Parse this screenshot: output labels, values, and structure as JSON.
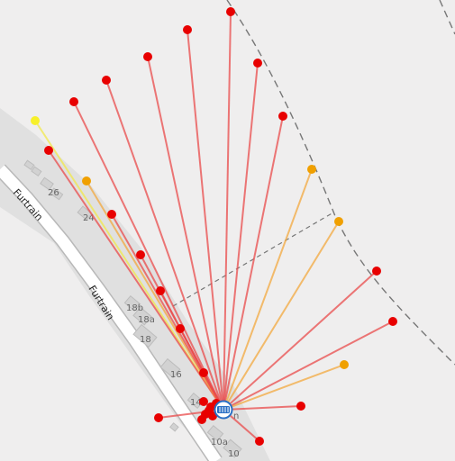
{
  "map": {
    "street_name": "Furtrain",
    "house_numbers": [
      "26",
      "24",
      "18b",
      "18a",
      "18",
      "16",
      "14",
      "10a",
      "10"
    ],
    "station_label": "n",
    "colors": {
      "background": "#efeeee",
      "land": "#e0e0e0",
      "road": "#ffffff",
      "road_casing": "#b8b8b8",
      "building": "#d2d2d2",
      "boundary": "#777777",
      "link_red": "#ea4b4b",
      "link_orange": "#f3a83d",
      "link_yellow": "#f2e84b",
      "point_red": "#e80000",
      "point_orange": "#f0a000",
      "point_yellow": "#f7f02a",
      "station": "#2a6fc4"
    },
    "points": [
      {
        "id": "p1",
        "status": "red"
      },
      {
        "id": "p2",
        "status": "red"
      },
      {
        "id": "p3",
        "status": "red"
      },
      {
        "id": "p4",
        "status": "red"
      },
      {
        "id": "p5",
        "status": "red"
      },
      {
        "id": "p6",
        "status": "red"
      },
      {
        "id": "p7",
        "status": "red"
      },
      {
        "id": "p8",
        "status": "orange"
      },
      {
        "id": "p9",
        "status": "orange"
      },
      {
        "id": "p10",
        "status": "red"
      },
      {
        "id": "p11",
        "status": "red"
      },
      {
        "id": "p12",
        "status": "orange"
      },
      {
        "id": "p13",
        "status": "red"
      },
      {
        "id": "p14",
        "status": "red"
      },
      {
        "id": "p15",
        "status": "red"
      },
      {
        "id": "p16",
        "status": "yellow"
      },
      {
        "id": "p17",
        "status": "red"
      },
      {
        "id": "p18",
        "status": "orange"
      },
      {
        "id": "p19",
        "status": "red"
      },
      {
        "id": "p20",
        "status": "red"
      },
      {
        "id": "p21",
        "status": "red"
      },
      {
        "id": "p22",
        "status": "red"
      },
      {
        "id": "p23",
        "status": "red"
      }
    ]
  }
}
